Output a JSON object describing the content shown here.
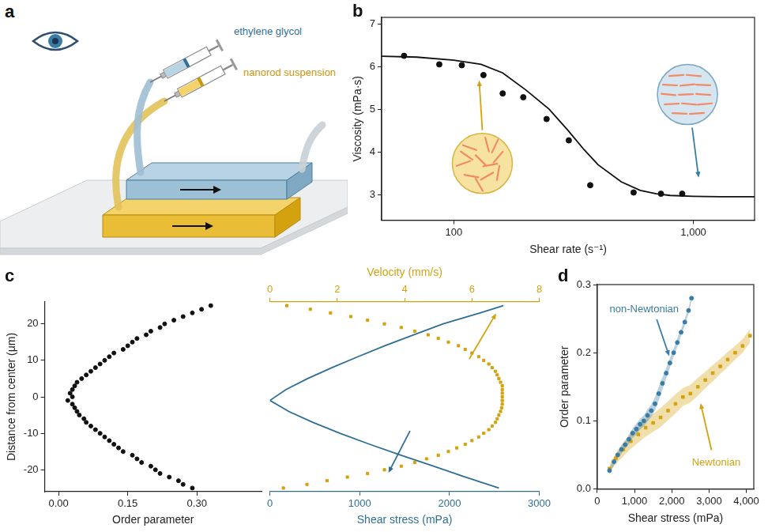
{
  "diagram": {
    "panel": "a",
    "labels": [
      {
        "text": "ethylene glycol",
        "color": "#2f6f96"
      },
      {
        "text": "nanorod suspension",
        "color": "#c9960c"
      }
    ]
  },
  "chart_data": [
    {
      "panel": "b",
      "type": "scatter",
      "xlabel": "Shear rate (s⁻¹)",
      "ylabel": "Viscosity (mPa·s)",
      "log": "x",
      "grid": false,
      "xlim": [
        50,
        1800
      ],
      "xticks": [
        100,
        {
          "value": 1000,
          "label": "1,000"
        }
      ],
      "ylim": [
        2.4,
        7.15
      ],
      "yticks": [
        3,
        4,
        5,
        6,
        7
      ],
      "series": [
        {
          "type": "scatter",
          "marker": "circle",
          "color": "#111111",
          "x": [
            62,
            87,
            108,
            133,
            160,
            195,
            244,
            302,
            371,
            563,
            732,
            898
          ],
          "values": [
            6.25,
            6.05,
            6.03,
            5.8,
            5.37,
            5.28,
            4.77,
            4.27,
            3.22,
            3.05,
            3.02,
            3.02
          ]
        },
        {
          "type": "line",
          "line_style": "solid",
          "color": "#111111",
          "x": [
            50,
            70,
            100,
            130,
            160,
            200,
            250,
            300,
            350,
            400,
            500,
            600,
            700,
            800,
            1000,
            1300,
            1800
          ],
          "values": [
            6.24,
            6.22,
            6.15,
            6.05,
            5.85,
            5.45,
            5.0,
            4.5,
            4.05,
            3.7,
            3.3,
            3.1,
            3.02,
            2.98,
            2.96,
            2.95,
            2.95
          ]
        }
      ]
    },
    {
      "panel": "c",
      "type": "scatter",
      "grid": false,
      "ylabel": "Distance from center (μm)",
      "ylim": [
        -26,
        26
      ],
      "yticks": [
        -20,
        -10,
        0,
        10,
        20
      ],
      "xlabel": "Order parameter",
      "xlim": [
        -0.03,
        0.44
      ],
      "xticks": [
        {
          "value": 0,
          "label": "0.00"
        },
        {
          "value": 0.15,
          "label": "0.15"
        },
        {
          "value": 0.3,
          "label": "0.30"
        }
      ],
      "x2label": "Shear stress (mPa)",
      "x2lim": [
        0,
        3000
      ],
      "x2ticks": [
        0,
        1000,
        2000,
        3000
      ],
      "x3label": "Velocity (mm/s)",
      "x3lim": [
        0,
        8
      ],
      "x3ticks": [
        0,
        2,
        4,
        6,
        8
      ],
      "series": [
        {
          "axis": "x",
          "type": "scatter",
          "marker": "circle",
          "color": "#111111",
          "x": [
            0.29,
            0.27,
            0.26,
            0.24,
            0.22,
            0.21,
            0.2,
            0.18,
            0.17,
            0.16,
            0.14,
            0.13,
            0.12,
            0.11,
            0.1,
            0.09,
            0.08,
            0.07,
            0.06,
            0.055,
            0.045,
            0.04,
            0.035,
            0.03,
            0.02,
            0.03,
            0.025,
            0.03,
            0.035,
            0.04,
            0.05,
            0.06,
            0.07,
            0.08,
            0.09,
            0.1,
            0.11,
            0.12,
            0.14,
            0.15,
            0.16,
            0.17,
            0.19,
            0.2,
            0.22,
            0.23,
            0.25,
            0.27,
            0.29,
            0.31,
            0.33
          ],
          "y": [
            -25,
            -24,
            -23,
            -22,
            -21,
            -20,
            -19,
            -18,
            -17,
            -16,
            -15,
            -14,
            -13,
            -12,
            -11,
            -10,
            -9,
            -8,
            -7,
            -6,
            -5,
            -4,
            -3,
            -2,
            -1,
            0,
            1,
            2,
            3,
            4,
            5,
            6,
            7,
            8,
            9,
            10,
            11,
            12,
            13,
            14,
            15,
            16,
            17,
            18,
            19,
            20,
            21,
            22,
            23,
            24,
            25
          ]
        },
        {
          "axis": "x3",
          "type": "scatter",
          "marker": "square",
          "color": "#d4a20f",
          "x": [
            0.4,
            1.1,
            1.7,
            2.3,
            2.9,
            3.4,
            3.9,
            4.3,
            4.65,
            5.0,
            5.3,
            5.55,
            5.8,
            6.0,
            6.2,
            6.35,
            6.5,
            6.6,
            6.7,
            6.75,
            6.8,
            6.85,
            6.88,
            6.9,
            6.9,
            6.9,
            6.9,
            6.9,
            6.9,
            6.85,
            6.8,
            6.75,
            6.7,
            6.6,
            6.5,
            6.35,
            6.2,
            6.0,
            5.8,
            5.6,
            5.3,
            5.0,
            4.7,
            4.3,
            3.9,
            3.4,
            2.9,
            2.4,
            1.8,
            1.2,
            0.5
          ],
          "y": [
            -25,
            -24,
            -23,
            -22,
            -21,
            -20,
            -19,
            -18,
            -17,
            -16,
            -15,
            -14,
            -13,
            -12,
            -11,
            -10,
            -9,
            -8,
            -7,
            -6,
            -5,
            -4,
            -3,
            -2,
            -1,
            0,
            1,
            2,
            3,
            4,
            5,
            6,
            7,
            8,
            9,
            10,
            11,
            12,
            13,
            14,
            15,
            16,
            17,
            18,
            19,
            20,
            21,
            22,
            23,
            24,
            25
          ]
        },
        {
          "axis": "x2",
          "type": "line",
          "line_style": "solid",
          "color": "#2f6f96",
          "x": [
            2550,
            2180,
            1820,
            1460,
            1110,
            780,
            480,
            210,
            0,
            180,
            420,
            690,
            980,
            1280,
            1600,
            1930,
            2340,
            2600
          ],
          "y": [
            -25,
            -22,
            -19,
            -16,
            -13,
            -10,
            -7,
            -4,
            -1,
            2,
            5,
            8,
            11,
            14,
            17,
            20,
            23,
            25
          ]
        }
      ]
    },
    {
      "panel": "d",
      "type": "scatter",
      "grid": false,
      "xlabel": "Shear stress (mPa)",
      "ylabel": "Order parameter",
      "xlim": [
        0,
        4200
      ],
      "xticks": [
        0,
        {
          "value": 1000,
          "label": "1,000"
        },
        {
          "value": 2000,
          "label": "2,000"
        },
        {
          "value": 3000,
          "label": "3,000"
        },
        {
          "value": 4000,
          "label": "4,000"
        }
      ],
      "ylim": [
        0,
        0.3
      ],
      "yticks": [
        {
          "value": 0,
          "label": "0.0"
        },
        {
          "value": 0.1,
          "label": "0.1"
        },
        {
          "value": 0.2,
          "label": "0.2"
        },
        {
          "value": 0.3,
          "label": "0.3"
        }
      ],
      "series": [
        {
          "name": "non-Newtonian",
          "marker": "circle",
          "color": "#3a7ca5",
          "x": [
            330,
            450,
            550,
            650,
            750,
            850,
            950,
            1050,
            1150,
            1250,
            1350,
            1450,
            1550,
            1650,
            1750,
            1850,
            1950,
            2050,
            2150,
            2250,
            2350,
            2450,
            2530
          ],
          "values": [
            0.027,
            0.04,
            0.05,
            0.058,
            0.065,
            0.073,
            0.082,
            0.088,
            0.095,
            0.1,
            0.108,
            0.115,
            0.125,
            0.14,
            0.155,
            0.17,
            0.185,
            0.2,
            0.215,
            0.23,
            0.245,
            0.262,
            0.28
          ],
          "error": [
            0.004,
            0.005,
            0.005,
            0.006,
            0.006,
            0.007,
            0.007,
            0.008,
            0.008,
            0.008,
            0.009,
            0.009,
            0.01,
            0.01,
            0.009,
            0.008,
            0.007,
            0.006,
            0.006,
            0.005,
            0.005,
            0.004,
            0.004
          ]
        },
        {
          "name": "Newtonian",
          "marker": "square",
          "color": "#d4a20f",
          "x": [
            330,
            500,
            700,
            900,
            1100,
            1300,
            1500,
            1700,
            1900,
            2100,
            2300,
            2500,
            2700,
            2900,
            3100,
            3300,
            3500,
            3700,
            3900,
            4100
          ],
          "values": [
            0.03,
            0.045,
            0.058,
            0.07,
            0.08,
            0.09,
            0.097,
            0.105,
            0.115,
            0.125,
            0.135,
            0.14,
            0.15,
            0.16,
            0.17,
            0.18,
            0.19,
            0.2,
            0.21,
            0.225
          ],
          "error": [
            0.006,
            0.008,
            0.01,
            0.011,
            0.012,
            0.013,
            0.013,
            0.014,
            0.014,
            0.014,
            0.013,
            0.013,
            0.013,
            0.012,
            0.012,
            0.011,
            0.011,
            0.01,
            0.01,
            0.01
          ]
        }
      ]
    }
  ]
}
